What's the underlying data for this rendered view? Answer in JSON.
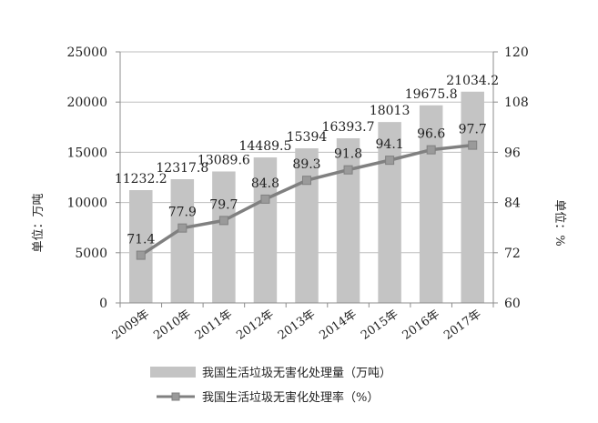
{
  "chart_data": {
    "type": "bar",
    "categories": [
      "2009年",
      "2010年",
      "2011年",
      "2012年",
      "2013年",
      "2014年",
      "2015年",
      "2016年",
      "2017年"
    ],
    "series": [
      {
        "name": "我国生活垃圾无害化处理量（万吨）",
        "type": "bar",
        "axis": "left",
        "values": [
          11232.2,
          12317.8,
          13089.6,
          14489.5,
          15394,
          16393.7,
          18013,
          19675.8,
          21034.2
        ],
        "labels": [
          "11232.2",
          "12317.8",
          "13089.6",
          "14489.5",
          "15394",
          "16393.7",
          "18013",
          "19675.8",
          "21034.2"
        ],
        "color": "#c4c4c4"
      },
      {
        "name": "我国生活垃圾无害化处理率（%）",
        "type": "line",
        "axis": "right",
        "values": [
          71.4,
          77.9,
          79.7,
          84.8,
          89.3,
          91.8,
          94.1,
          96.6,
          97.7
        ],
        "labels": [
          "71.4",
          "77.9",
          "79.7",
          "84.8",
          "89.3",
          "91.8",
          "94.1",
          "96.6",
          "97.7"
        ],
        "color": "#808080",
        "marker": "square"
      }
    ],
    "y_left": {
      "label": "单位：万吨",
      "ylim": [
        0,
        25000
      ],
      "ticks": [
        0,
        5000,
        10000,
        15000,
        20000,
        25000
      ],
      "tick_labels": [
        "0",
        "5000",
        "10000",
        "15000",
        "20000",
        "25000"
      ]
    },
    "y_right": {
      "label": "单位：%",
      "ylim": [
        60,
        120
      ],
      "ticks": [
        60,
        72,
        84,
        96,
        108,
        120
      ],
      "tick_labels": [
        "60",
        "72",
        "84",
        "96",
        "108",
        "120"
      ]
    },
    "grid": "horizontal",
    "legend_position": "bottom",
    "title": ""
  }
}
